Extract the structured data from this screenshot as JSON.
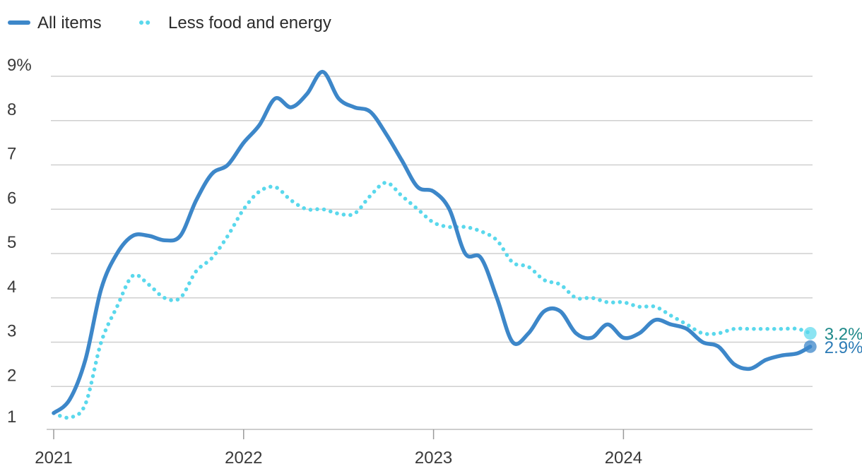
{
  "chart_data": {
    "type": "line",
    "title": "",
    "xlabel": "",
    "ylabel": "",
    "ylim": [
      1,
      9
    ],
    "yticks": [
      {
        "value": 9,
        "label": "9%"
      },
      {
        "value": 8,
        "label": "8"
      },
      {
        "value": 7,
        "label": "7"
      },
      {
        "value": 6,
        "label": "6"
      },
      {
        "value": 5,
        "label": "5"
      },
      {
        "value": 4,
        "label": "4"
      },
      {
        "value": 3,
        "label": "3"
      },
      {
        "value": 2,
        "label": "2"
      },
      {
        "value": 1,
        "label": "1"
      }
    ],
    "xticks": [
      {
        "value": 0,
        "label": "2021"
      },
      {
        "value": 12,
        "label": "2022"
      },
      {
        "value": 24,
        "label": "2023"
      },
      {
        "value": 36,
        "label": "2024"
      }
    ],
    "x_range": [
      0,
      47.8
    ],
    "x_unit": "months since Jan 2021",
    "legend_position": "top-left",
    "series": [
      {
        "name": "All items",
        "color": "#3d87c9",
        "style": "solid",
        "end_label": "2.9%",
        "end_label_color": "#2c7bb6",
        "x": [
          0,
          1,
          2,
          3,
          4,
          5,
          6,
          7,
          8,
          9,
          10,
          11,
          12,
          13,
          14,
          15,
          16,
          17,
          18,
          19,
          20,
          21,
          22,
          23,
          24,
          25,
          26,
          27,
          28,
          29,
          30,
          31,
          32,
          33,
          34,
          35,
          36,
          37,
          38,
          39,
          40,
          41,
          42,
          43,
          44,
          45,
          46,
          47,
          47.8
        ],
        "values": [
          1.4,
          1.7,
          2.6,
          4.2,
          5.0,
          5.4,
          5.4,
          5.3,
          5.4,
          6.2,
          6.8,
          7.0,
          7.5,
          7.9,
          8.5,
          8.3,
          8.6,
          9.1,
          8.5,
          8.3,
          8.2,
          7.7,
          7.1,
          6.5,
          6.4,
          6.0,
          5.0,
          4.9,
          4.0,
          3.0,
          3.2,
          3.7,
          3.7,
          3.2,
          3.1,
          3.4,
          3.1,
          3.2,
          3.5,
          3.4,
          3.3,
          3.0,
          2.9,
          2.5,
          2.4,
          2.6,
          2.7,
          2.75,
          2.9
        ]
      },
      {
        "name": "Less food and energy",
        "color": "#5ad8ec",
        "style": "dotted",
        "end_label": "3.2%",
        "end_label_color": "#1f8a8a",
        "x": [
          0,
          1,
          2,
          3,
          4,
          5,
          6,
          7,
          8,
          9,
          10,
          11,
          12,
          13,
          14,
          15,
          16,
          17,
          18,
          19,
          20,
          21,
          22,
          23,
          24,
          25,
          26,
          27,
          28,
          29,
          30,
          31,
          32,
          33,
          34,
          35,
          36,
          37,
          38,
          39,
          40,
          41,
          42,
          43,
          44,
          45,
          46,
          47,
          47.8
        ],
        "values": [
          1.4,
          1.3,
          1.6,
          3.0,
          3.8,
          4.5,
          4.3,
          4.0,
          4.0,
          4.6,
          4.9,
          5.4,
          6.0,
          6.4,
          6.5,
          6.2,
          6.0,
          6.0,
          5.9,
          5.9,
          6.3,
          6.6,
          6.3,
          6.0,
          5.7,
          5.6,
          5.6,
          5.5,
          5.3,
          4.8,
          4.7,
          4.4,
          4.3,
          4.0,
          4.0,
          3.9,
          3.9,
          3.8,
          3.8,
          3.6,
          3.4,
          3.2,
          3.2,
          3.3,
          3.3,
          3.3,
          3.3,
          3.3,
          3.2
        ]
      }
    ]
  }
}
